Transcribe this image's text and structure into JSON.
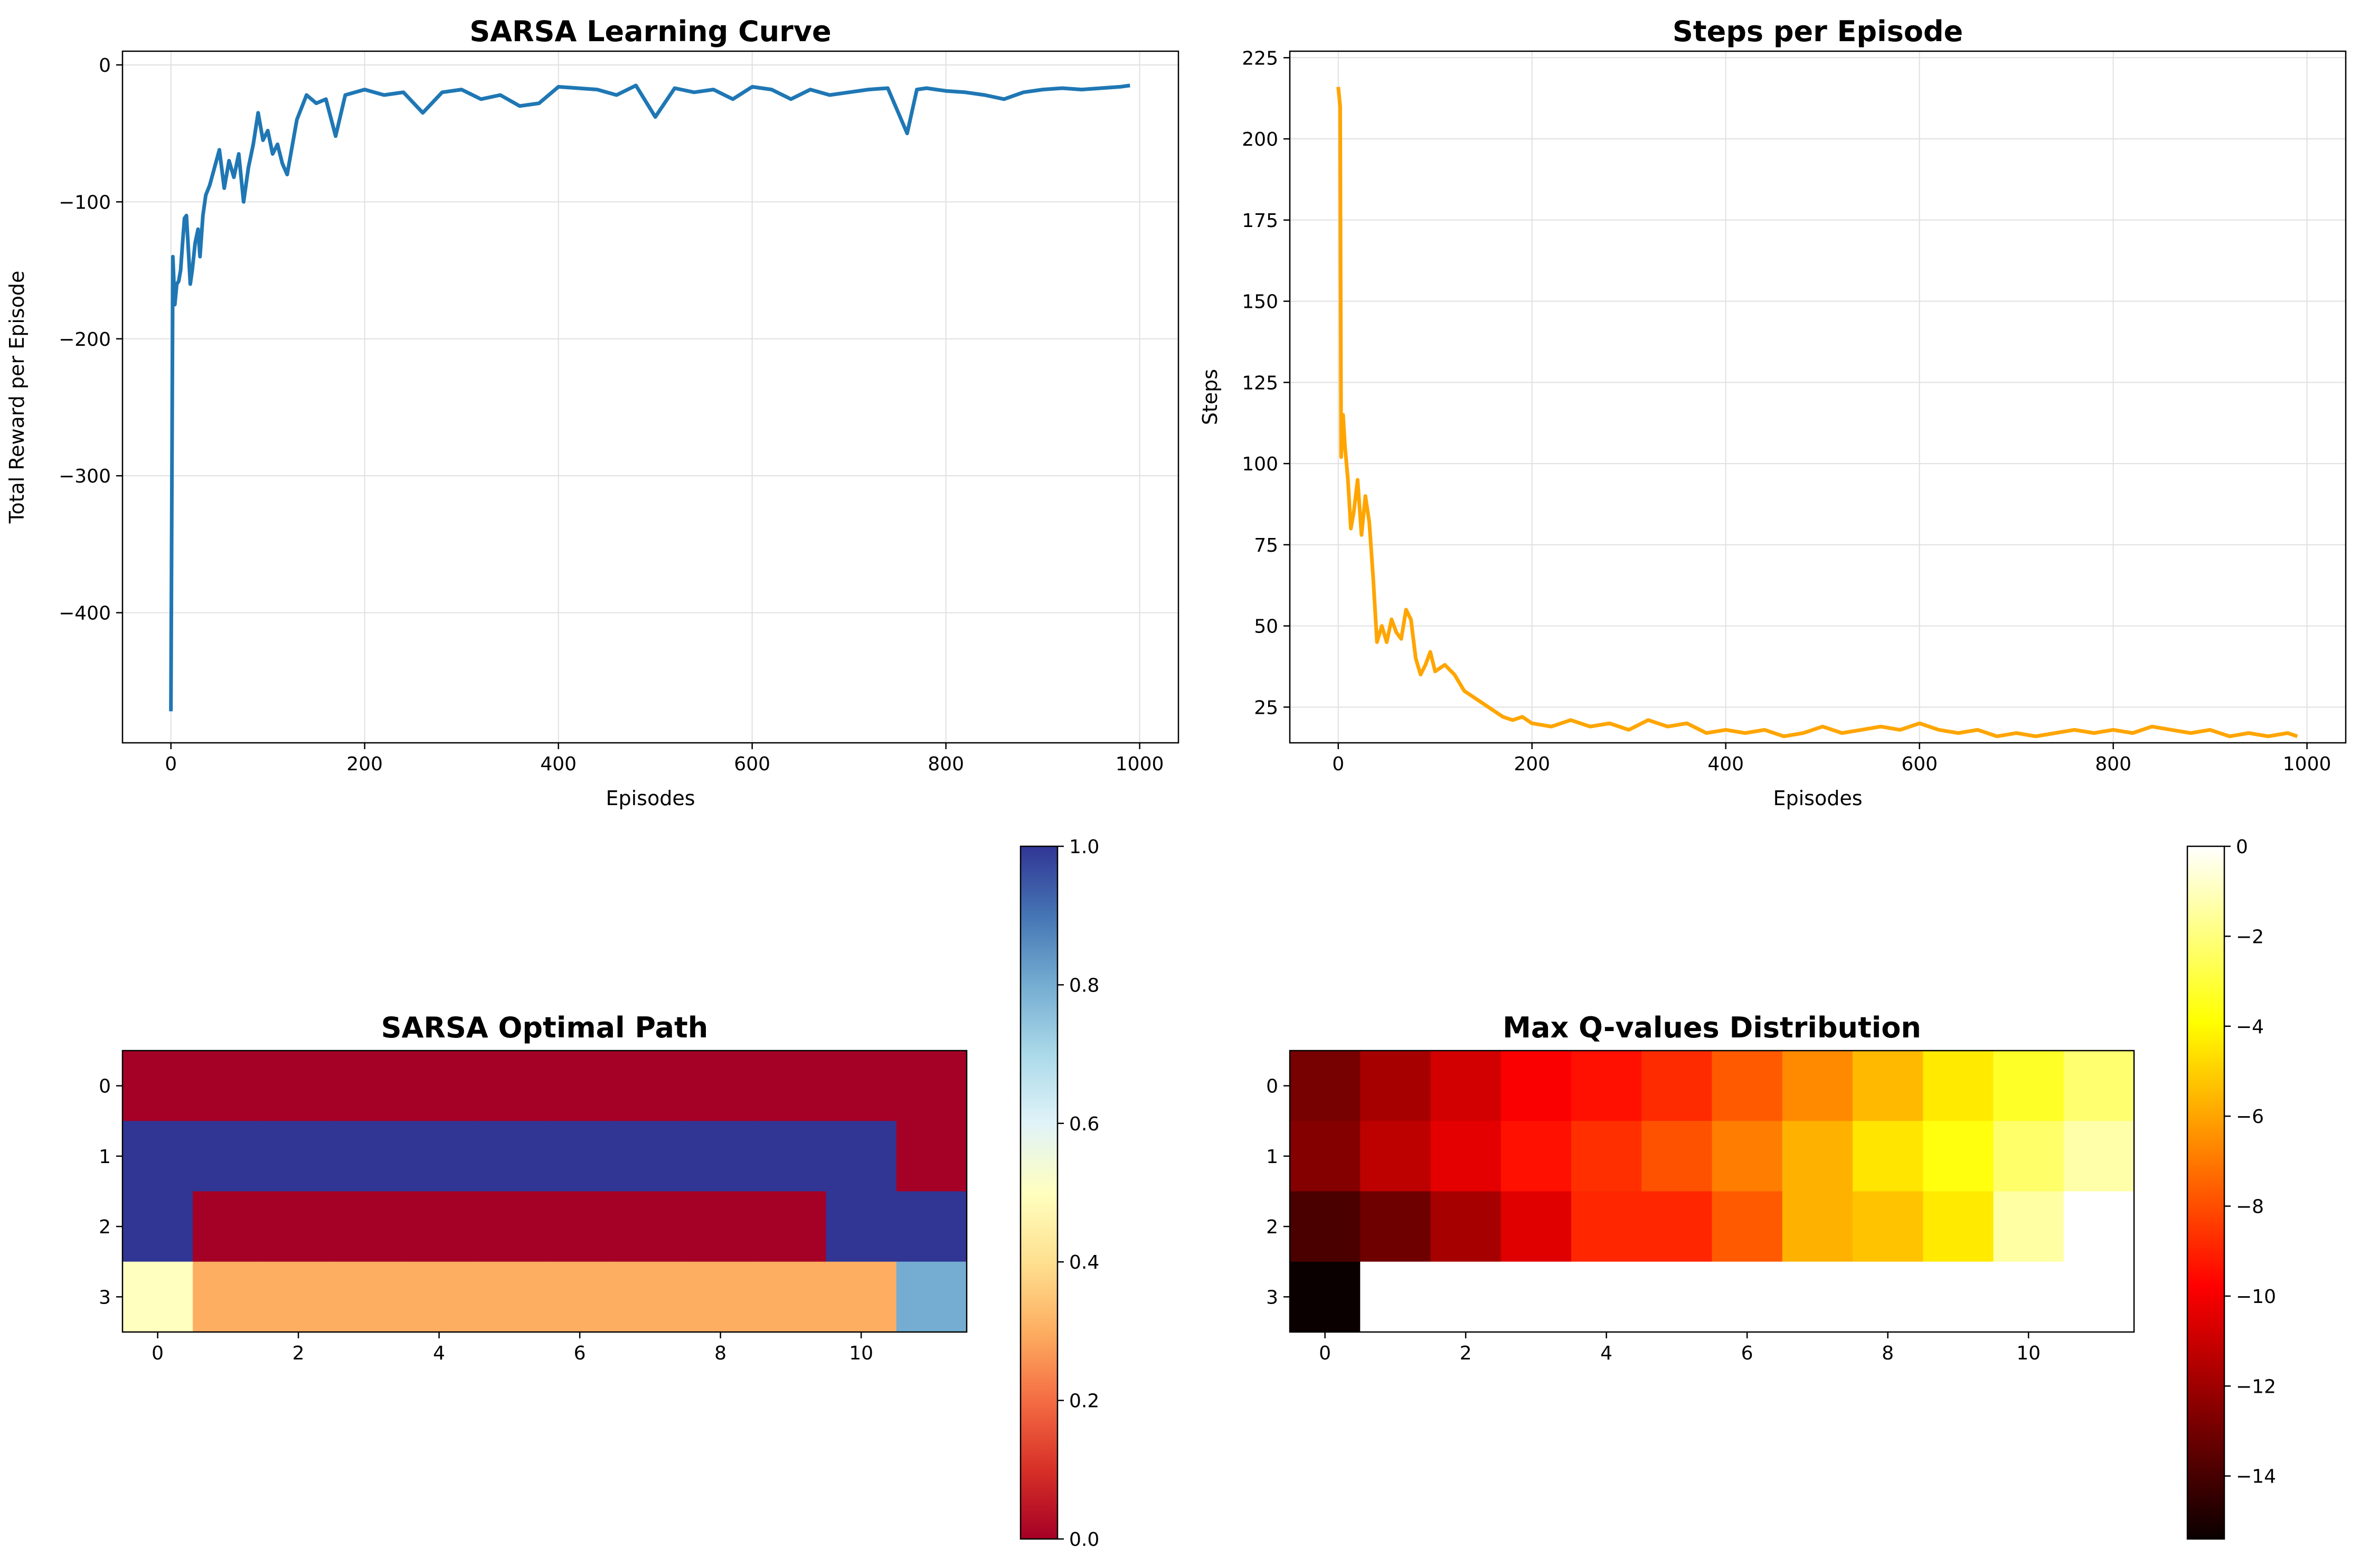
{
  "chart_data": [
    {
      "type": "line",
      "title": "SARSA Learning Curve",
      "xlabel": "Episodes",
      "ylabel": "Total Reward per Episode",
      "xlim": [
        -50,
        1040
      ],
      "ylim": [
        -495,
        10
      ],
      "xticks": [
        0,
        200,
        400,
        600,
        800,
        1000
      ],
      "yticks": [
        0,
        -100,
        -200,
        -300,
        -400
      ],
      "xtick_labels": [
        "0",
        "200",
        "400",
        "600",
        "800",
        "1000"
      ],
      "ytick_labels": [
        "0",
        "−100",
        "−200",
        "−300",
        "−400"
      ],
      "grid": true,
      "color": "#1f77b4",
      "series": [
        {
          "x": [
            0,
            2,
            4,
            6,
            8,
            10,
            12,
            14,
            16,
            18,
            20,
            22,
            25,
            28,
            30,
            33,
            36,
            40,
            45,
            50,
            55,
            60,
            65,
            70,
            75,
            80,
            85,
            90,
            95,
            100,
            105,
            110,
            115,
            120,
            130,
            140,
            150,
            160,
            170,
            180,
            200,
            220,
            240,
            260,
            280,
            300,
            320,
            340,
            360,
            380,
            400,
            420,
            440,
            460,
            480,
            500,
            520,
            540,
            560,
            580,
            600,
            620,
            640,
            660,
            680,
            700,
            720,
            740,
            760,
            770,
            780,
            800,
            820,
            840,
            860,
            880,
            900,
            920,
            940,
            960,
            980,
            990
          ],
          "y": [
            -472,
            -140,
            -175,
            -160,
            -158,
            -150,
            -130,
            -112,
            -110,
            -135,
            -160,
            -150,
            -130,
            -120,
            -140,
            -110,
            -95,
            -88,
            -75,
            -62,
            -90,
            -70,
            -82,
            -65,
            -100,
            -75,
            -58,
            -35,
            -55,
            -48,
            -65,
            -58,
            -72,
            -80,
            -40,
            -22,
            -28,
            -25,
            -52,
            -22,
            -18,
            -22,
            -20,
            -35,
            -20,
            -18,
            -25,
            -22,
            -30,
            -28,
            -16,
            -17,
            -18,
            -22,
            -15,
            -38,
            -17,
            -20,
            -18,
            -25,
            -16,
            -18,
            -25,
            -18,
            -22,
            -20,
            -18,
            -17,
            -50,
            -18,
            -17,
            -19,
            -20,
            -22,
            -25,
            -20,
            -18,
            -17,
            -18,
            -17,
            -16,
            -15
          ]
        }
      ]
    },
    {
      "type": "line",
      "title": "Steps per Episode",
      "xlabel": "Episodes",
      "ylabel": "Steps",
      "xlim": [
        -50,
        1040
      ],
      "ylim": [
        14,
        227
      ],
      "xticks": [
        0,
        200,
        400,
        600,
        800,
        1000
      ],
      "yticks": [
        25,
        50,
        75,
        100,
        125,
        150,
        175,
        200,
        225
      ],
      "xtick_labels": [
        "0",
        "200",
        "400",
        "600",
        "800",
        "1000"
      ],
      "ytick_labels": [
        "25",
        "50",
        "75",
        "100",
        "125",
        "150",
        "175",
        "200",
        "225"
      ],
      "grid": true,
      "color": "#ffa500",
      "series": [
        {
          "x": [
            0,
            2,
            3,
            5,
            7,
            10,
            13,
            16,
            20,
            24,
            28,
            32,
            36,
            40,
            45,
            50,
            55,
            60,
            65,
            70,
            75,
            80,
            85,
            90,
            95,
            100,
            110,
            120,
            130,
            140,
            150,
            160,
            170,
            180,
            190,
            200,
            220,
            240,
            260,
            280,
            300,
            320,
            340,
            360,
            380,
            400,
            420,
            440,
            460,
            480,
            500,
            520,
            540,
            560,
            580,
            600,
            620,
            640,
            660,
            680,
            700,
            720,
            740,
            760,
            780,
            800,
            820,
            840,
            860,
            880,
            900,
            920,
            940,
            960,
            980,
            990
          ],
          "y": [
            216,
            210,
            102,
            115,
            105,
            95,
            80,
            85,
            95,
            78,
            90,
            82,
            65,
            45,
            50,
            45,
            52,
            48,
            46,
            55,
            52,
            40,
            35,
            38,
            42,
            36,
            38,
            35,
            30,
            28,
            26,
            24,
            22,
            21,
            22,
            20,
            19,
            21,
            19,
            20,
            18,
            21,
            19,
            20,
            17,
            18,
            17,
            18,
            16,
            17,
            19,
            17,
            18,
            19,
            18,
            20,
            18,
            17,
            18,
            16,
            17,
            16,
            17,
            18,
            17,
            18,
            17,
            19,
            18,
            17,
            18,
            16,
            17,
            16,
            17,
            16
          ]
        }
      ]
    },
    {
      "type": "heatmap",
      "title": "SARSA Optimal Path",
      "xticks": [
        0,
        2,
        4,
        6,
        8,
        10
      ],
      "yticks": [
        0,
        1,
        2,
        3
      ],
      "xtick_labels": [
        "0",
        "2",
        "4",
        "6",
        "8",
        "10"
      ],
      "ytick_labels": [
        "0",
        "1",
        "2",
        "3"
      ],
      "colormap": "RdYlBu",
      "vmin": 0,
      "vmax": 1,
      "colorbar_ticks": [
        0.0,
        0.2,
        0.4,
        0.6,
        0.8,
        1.0
      ],
      "colorbar_tick_labels": [
        "0.0",
        "0.2",
        "0.4",
        "0.6",
        "0.8",
        "1.0"
      ],
      "grid": [
        [
          0,
          0,
          0,
          0,
          0,
          0,
          0,
          0,
          0,
          0,
          0,
          0
        ],
        [
          1,
          1,
          1,
          1,
          1,
          1,
          1,
          1,
          1,
          1,
          1,
          0
        ],
        [
          1,
          0,
          0,
          0,
          0,
          0,
          0,
          0,
          0,
          0,
          1,
          1
        ],
        [
          0.5,
          0.3,
          0.3,
          0.3,
          0.3,
          0.3,
          0.3,
          0.3,
          0.3,
          0.3,
          0.3,
          0.8
        ]
      ]
    },
    {
      "type": "heatmap",
      "title": "Max Q-values Distribution",
      "xticks": [
        0,
        2,
        4,
        6,
        8,
        10
      ],
      "yticks": [
        0,
        1,
        2,
        3
      ],
      "xtick_labels": [
        "0",
        "2",
        "4",
        "6",
        "8",
        "10"
      ],
      "ytick_labels": [
        "0",
        "1",
        "2",
        "3"
      ],
      "colormap": "hot",
      "vmin": -15.4,
      "vmax": 0,
      "colorbar_ticks": [
        0,
        -2,
        -4,
        -6,
        -8,
        -10,
        -12,
        -14
      ],
      "colorbar_tick_labels": [
        "0",
        "−2",
        "−4",
        "−6",
        "−8",
        "−10",
        "−12",
        "−14"
      ],
      "grid": [
        [
          -12.9,
          -11.8,
          -10.8,
          -9.9,
          -9.4,
          -8.8,
          -7.7,
          -6.6,
          -5.5,
          -4.4,
          -3.3,
          -2.2
        ],
        [
          -12.6,
          -11.3,
          -10.4,
          -9.4,
          -8.7,
          -7.9,
          -6.9,
          -5.7,
          -4.5,
          -3.7,
          -2.3,
          -1.3
        ],
        [
          -13.9,
          -13.1,
          -11.8,
          -10.5,
          -8.9,
          -8.9,
          -7.7,
          -5.7,
          -5.3,
          -4.4,
          -1.4,
          0
        ],
        [
          -15.4,
          0,
          0,
          0,
          0,
          0,
          0,
          0,
          0,
          0,
          0,
          0
        ]
      ]
    }
  ]
}
